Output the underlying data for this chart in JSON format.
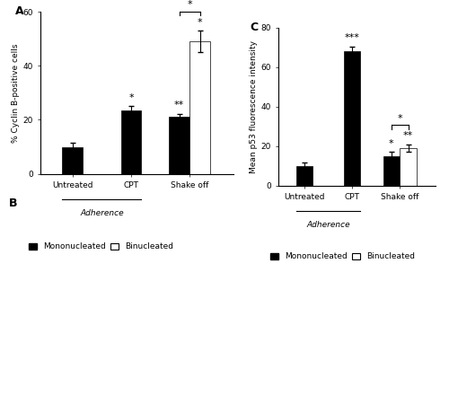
{
  "panel_A": {
    "title": "A",
    "ylabel": "% Cyclin B-positive cells",
    "ylim": [
      0,
      60
    ],
    "yticks": [
      0,
      20,
      40,
      60
    ],
    "groups": [
      "Untreated",
      "CPT",
      "Shake off"
    ],
    "mono_values": [
      10,
      23.5,
      21
    ],
    "mono_errors": [
      1.5,
      1.5,
      1.2
    ],
    "bi_value": 49,
    "bi_error": 4,
    "bar_width": 0.35,
    "mono_color": "#000000",
    "bi_color": "#ffffff",
    "sig_mono": [
      "",
      "*",
      "**"
    ],
    "sig_bi": "*",
    "bracket_label": "*",
    "xlim": [
      -0.55,
      2.75
    ]
  },
  "panel_C": {
    "title": "C",
    "ylabel": "Mean p53 fluorescence intensity",
    "ylim": [
      0,
      80
    ],
    "yticks": [
      0,
      20,
      40,
      60,
      80
    ],
    "groups": [
      "Untreated",
      "CPT",
      "Shake off"
    ],
    "mono_values": [
      10,
      68,
      15
    ],
    "mono_errors": [
      1.5,
      2.5,
      2.0
    ],
    "bi_value": 19,
    "bi_error": 2,
    "bar_width": 0.35,
    "mono_color": "#000000",
    "bi_color": "#ffffff",
    "sig_mono": [
      "",
      "***",
      "*"
    ],
    "sig_bi": "**",
    "bracket_label": "*",
    "xlim": [
      -0.55,
      2.75
    ]
  },
  "legend_labels": [
    "Mononucleated",
    "Binucleated"
  ],
  "background_color": "#ffffff",
  "font_size": 6.5,
  "title_font_size": 9,
  "label_font_size": 6.5,
  "adherence_label": "Adherence"
}
